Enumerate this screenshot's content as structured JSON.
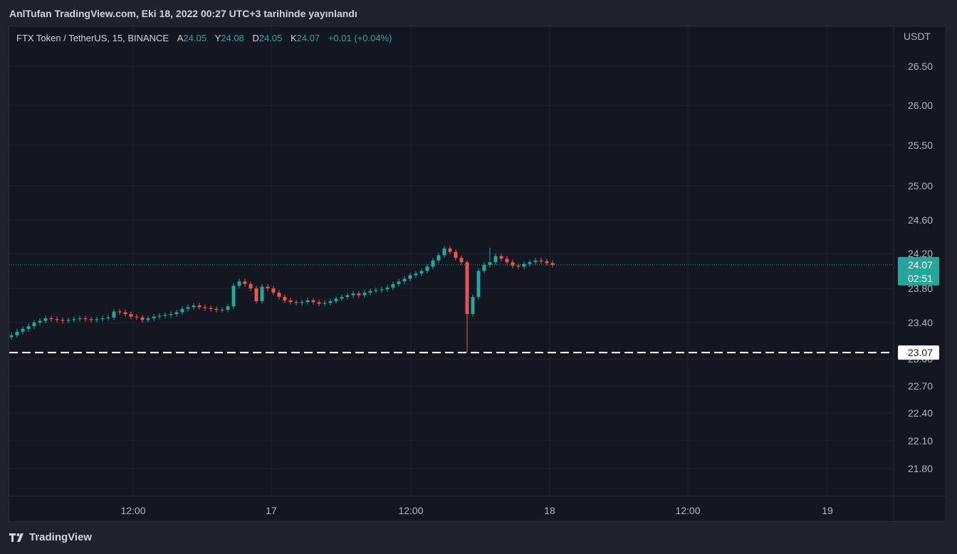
{
  "header": {
    "title": "AnlTufan TradingView.com, Eki 18, 2022 00:27 UTC+3 tarihinde yayınlandı"
  },
  "legend": {
    "symbol": "FTX Token / TetherUS, 15, BINANCE",
    "open_label": "A",
    "open": "24.05",
    "high_label": "Y",
    "high": "24.08",
    "low_label": "D",
    "low": "24.05",
    "close_label": "K",
    "close": "24.07",
    "change": "+0.01 (+0.04%)"
  },
  "footer": {
    "brand": "TradingView"
  },
  "colors": {
    "up": "#26a69a",
    "down": "#ef5350",
    "background": "#131722",
    "grid": "#1e222d",
    "text": "#b2b5be"
  },
  "chart_data": {
    "type": "candlestick",
    "currency": "USDT",
    "y_ticks": [
      "26.50",
      "26.00",
      "25.50",
      "25.00",
      "24.60",
      "24.20",
      "23.80",
      "23.40",
      "23.00",
      "22.70",
      "22.40",
      "22.10",
      "21.80"
    ],
    "x_ticks": [
      "12:00",
      "17",
      "12:00",
      "18",
      "12:00",
      "19"
    ],
    "last_price": "24.07",
    "countdown": "02:51",
    "horizontal_line": "23.07",
    "series": [
      {
        "name": "close",
        "values": [
          23.26,
          23.3,
          23.33,
          23.36,
          23.4,
          23.42,
          23.45,
          23.44,
          23.43,
          23.42,
          23.43,
          23.44,
          23.45,
          23.44,
          23.43,
          23.44,
          23.45,
          23.46,
          23.53,
          23.52,
          23.5,
          23.47,
          23.46,
          23.43,
          23.45,
          23.47,
          23.48,
          23.49,
          23.5,
          23.52,
          23.56,
          23.58,
          23.6,
          23.58,
          23.57,
          23.56,
          23.55,
          23.55,
          23.59,
          23.83,
          23.88,
          23.85,
          23.8,
          23.65,
          23.82,
          23.8,
          23.75,
          23.7,
          23.66,
          23.64,
          23.63,
          23.64,
          23.66,
          23.64,
          23.62,
          23.63,
          23.65,
          23.68,
          23.7,
          23.72,
          23.74,
          23.72,
          23.75,
          23.77,
          23.78,
          23.79,
          23.81,
          23.85,
          23.88,
          23.91,
          23.95,
          23.97,
          24.0,
          24.05,
          24.12,
          24.18,
          24.26,
          24.22,
          24.15,
          24.1,
          23.5,
          23.7,
          24.0,
          24.07,
          24.1,
          24.17,
          24.14,
          24.1,
          24.06,
          24.05,
          24.08,
          24.1,
          24.12,
          24.11,
          24.09,
          24.07
        ]
      }
    ]
  }
}
